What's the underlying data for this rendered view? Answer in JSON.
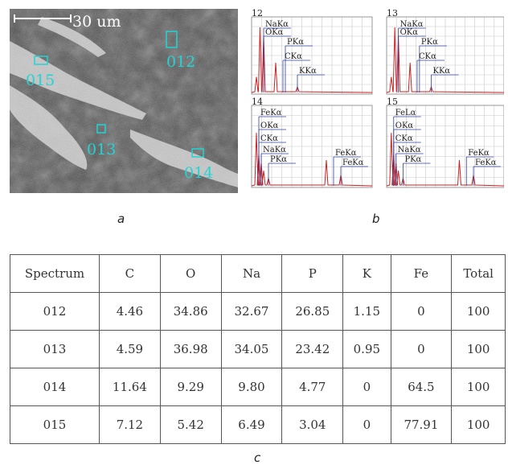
{
  "figure": {
    "panel_labels": {
      "a": "a",
      "b": "b",
      "c": "c"
    },
    "micrograph": {
      "scale_bar_label": "30 um",
      "spot_labels": [
        "012",
        "015",
        "013",
        "014"
      ],
      "spot_color": "#22d4d4"
    },
    "spectra": [
      {
        "number": "12",
        "peaks": [
          "NaKα",
          "OKα",
          "PKα",
          "CKα",
          "KKα"
        ]
      },
      {
        "number": "13",
        "peaks": [
          "NaKα",
          "OKα",
          "PKα",
          "CKα",
          "KKα"
        ]
      },
      {
        "number": "14",
        "peaks": [
          "FeKα",
          "OKα",
          "CKα",
          "NaKα",
          "PKα",
          "FeKα",
          "FeKα"
        ]
      },
      {
        "number": "15",
        "peaks": [
          "FeLα",
          "OKα",
          "CKα",
          "NaKα",
          "PKα",
          "FeKα",
          "FeKα"
        ]
      }
    ],
    "spectrum_colors": {
      "trace": "#cc2222",
      "label_line": "#3040a0",
      "grid": "#c8c8c8"
    },
    "table": {
      "headers": [
        "Spectrum",
        "C",
        "O",
        "Na",
        "P",
        "K",
        "Fe",
        "Total"
      ],
      "rows": [
        [
          "012",
          "4.46",
          "34.86",
          "32.67",
          "26.85",
          "1.15",
          "0",
          "100"
        ],
        [
          "013",
          "4.59",
          "36.98",
          "34.05",
          "23.42",
          "0.95",
          "0",
          "100"
        ],
        [
          "014",
          "11.64",
          "9.29",
          "9.80",
          "4.77",
          "0",
          "64.5",
          "100"
        ],
        [
          "015",
          "7.12",
          "5.42",
          "6.49",
          "3.04",
          "0",
          "77.91",
          "100"
        ]
      ]
    }
  }
}
